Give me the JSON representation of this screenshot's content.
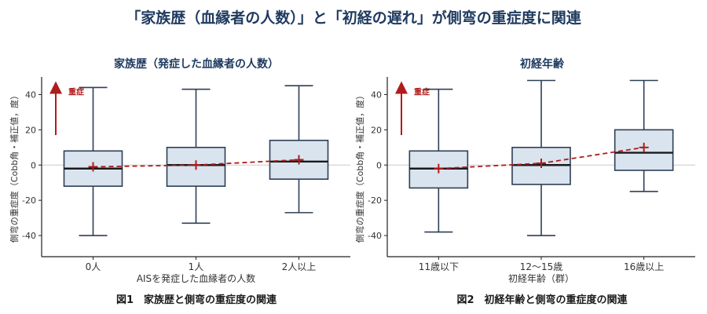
{
  "title": "「家族歴（血縁者の人数）」と「初経の遅れ」が側弯の重症度に関連",
  "colors": {
    "box_fill": "#d9e4ef",
    "box_stroke": "#2e3f55",
    "mean_line": "#b01c1c",
    "zero_line": "#cccccc"
  },
  "severity_label": "重症",
  "chart_data": [
    {
      "type": "box",
      "title": "家族歴（発症した血縁者の人数）",
      "xlabel": "AISを発症した血縁者の人数",
      "ylabel": "側弯の重症度（Cobb角・補正値，度）",
      "caption": "図1　家族歴と側弯の重症度の関連",
      "ylim": [
        -52,
        50
      ],
      "yticks": [
        -40,
        -20,
        0,
        20,
        40
      ],
      "categories": [
        "0人",
        "1人",
        "2人以上"
      ],
      "boxes": [
        {
          "min": -40,
          "q1": -12,
          "median": -2,
          "q3": 8,
          "max": 44,
          "mean": -1
        },
        {
          "min": -33,
          "q1": -12,
          "median": 0,
          "q3": 10,
          "max": 43,
          "mean": 0
        },
        {
          "min": -27,
          "q1": -8,
          "median": 2,
          "q3": 14,
          "max": 45,
          "mean": 3
        }
      ]
    },
    {
      "type": "box",
      "title": "初経年齢",
      "xlabel": "初経年齢（群）",
      "ylabel": "側弯の重症度（Cobb角・補正値，度）",
      "caption": "図2　初経年齢と側弯の重症度の関連",
      "ylim": [
        -52,
        50
      ],
      "yticks": [
        -40,
        -20,
        0,
        20,
        40
      ],
      "categories": [
        "11歳以下",
        "12～15歳",
        "16歳以上"
      ],
      "boxes": [
        {
          "min": -38,
          "q1": -13,
          "median": -2,
          "q3": 8,
          "max": 43,
          "mean": -2
        },
        {
          "min": -40,
          "q1": -11,
          "median": 0,
          "q3": 10,
          "max": 48,
          "mean": 1
        },
        {
          "min": -15,
          "q1": -3,
          "median": 7,
          "q3": 20,
          "max": 48,
          "mean": 10
        }
      ]
    }
  ]
}
